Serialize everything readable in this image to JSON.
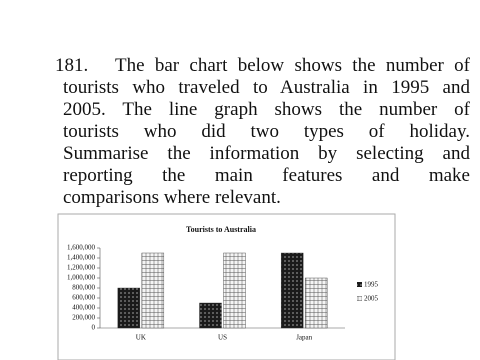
{
  "question": {
    "number": "181.",
    "lines": [
      "The bar chart below shows the number of",
      "tourists who traveled to Australia in 1995 and",
      "2005. The line graph shows the number of",
      "tourists who did two types of holiday.",
      "Summarise the information by selecting and",
      "reporting the main features and make",
      "comparisons where relevant."
    ]
  },
  "chart_data": {
    "type": "bar",
    "title": "Tourists to Australia",
    "categories": [
      "UK",
      "US",
      "Japan"
    ],
    "series": [
      {
        "name": "1995",
        "color": "#1a1a1a",
        "values": [
          800000,
          500000,
          1500000
        ]
      },
      {
        "name": "2005",
        "color": "#f4f4f4",
        "values": [
          1500000,
          1500000,
          1000000
        ]
      }
    ],
    "ylim": [
      0,
      1600000
    ],
    "yticks": [
      0,
      {
        "value": 200000,
        "label": "200,000"
      },
      {
        "value": 400000,
        "label": "400,000"
      },
      {
        "value": 600000,
        "label": "600,000"
      },
      {
        "value": 800000,
        "label": "800,000"
      },
      {
        "value": 1000000,
        "label": "1,000,000"
      },
      {
        "value": 1200000,
        "label": "1,200,000"
      },
      {
        "value": 1400000,
        "label": "1,400,000"
      },
      {
        "value": 1600000,
        "label": "1,600,000"
      }
    ],
    "legend": "right"
  }
}
